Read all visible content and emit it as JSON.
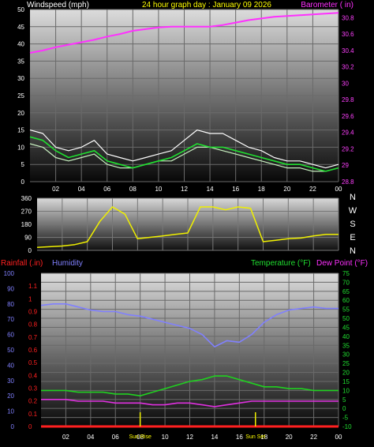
{
  "header": {
    "left": "Windspeed (mph)",
    "center": "24 hour graph day : January 09 2026",
    "right": "Barometer ( in)"
  },
  "colors": {
    "wind_gust": "#ffffff",
    "wind_avg": "#c8f0c0",
    "wind_trend": "#20e030",
    "barometer": "#ff30ff",
    "wind_dir": "#f0f000",
    "humidity": "#8080ff",
    "temperature": "#20d020",
    "dew_point": "#e030e0",
    "rainfall": "#ff2020",
    "sun_markers": "#f0f000"
  },
  "chart_data": [
    {
      "type": "line",
      "name": "wind-barometer",
      "xlabel_ticks": [
        "02",
        "04",
        "06",
        "08",
        "10",
        "12",
        "14",
        "16",
        "18",
        "20",
        "22",
        "00"
      ],
      "left_axis": {
        "label": "Windspeed (mph)",
        "ylim": [
          0,
          50
        ],
        "ticks": [
          "0",
          "5",
          "10",
          "15",
          "20",
          "25",
          "30",
          "35",
          "40",
          "45",
          "50"
        ]
      },
      "right_axis": {
        "label": "Barometer ( in)",
        "ylim": [
          28.8,
          30.9
        ],
        "ticks": [
          "28.8",
          "29",
          "29.2",
          "29.4",
          "29.6",
          "29.8",
          "30",
          "30.2",
          "30.4",
          "30.6",
          "30.8"
        ]
      },
      "x_hours": [
        0,
        1,
        2,
        3,
        4,
        5,
        6,
        7,
        8,
        9,
        10,
        11,
        12,
        13,
        14,
        15,
        16,
        17,
        18,
        19,
        20,
        21,
        22,
        23,
        24
      ],
      "barometer": [
        30.37,
        30.4,
        30.44,
        30.47,
        30.5,
        30.53,
        30.57,
        30.6,
        30.64,
        30.66,
        30.68,
        30.69,
        30.69,
        30.69,
        30.69,
        30.71,
        30.74,
        30.77,
        30.79,
        30.81,
        30.82,
        30.83,
        30.84,
        30.85,
        30.86
      ],
      "wind_gust": [
        15,
        14,
        10,
        9,
        10,
        12,
        8,
        7,
        6,
        7,
        8,
        9,
        12,
        15,
        14,
        14,
        12,
        10,
        9,
        7,
        6,
        6,
        5,
        4,
        5
      ],
      "wind_avg": [
        11,
        10,
        7,
        6,
        7,
        8,
        5,
        4,
        4,
        5,
        6,
        6,
        8,
        10,
        10,
        9,
        8,
        7,
        6,
        5,
        4,
        4,
        3,
        3,
        4
      ],
      "wind_trend": [
        13,
        12,
        9,
        7,
        8,
        9,
        6,
        5,
        4,
        5,
        6,
        7,
        9,
        11,
        10,
        10,
        9,
        8,
        7,
        6,
        5,
        5,
        4,
        3,
        4
      ],
      "grid": true
    },
    {
      "type": "line",
      "name": "wind-direction",
      "yticks": [
        "360",
        "270",
        "180",
        "90",
        "0"
      ],
      "ylim": [
        0,
        360
      ],
      "compass": [
        "N",
        "W",
        "S",
        "E",
        "N"
      ],
      "x_hours": [
        0,
        1,
        2,
        3,
        4,
        5,
        6,
        7,
        8,
        9,
        10,
        11,
        12,
        13,
        14,
        15,
        16,
        17,
        18,
        19,
        20,
        21,
        22,
        23,
        24
      ],
      "wind_dir": [
        20,
        25,
        30,
        40,
        60,
        200,
        300,
        250,
        80,
        90,
        100,
        110,
        120,
        300,
        300,
        280,
        300,
        290,
        60,
        70,
        80,
        85,
        100,
        110,
        110
      ],
      "grid": true
    },
    {
      "type": "line",
      "name": "temperature-humidity",
      "header": {
        "rainfall": "Rainfall (.in)",
        "humidity": "Humidity",
        "temperature": "Temperature (°F)",
        "dew_point": "Dew Point (°F)"
      },
      "axis_humidity": {
        "ylim": [
          0,
          100
        ],
        "ticks": [
          "0",
          "10",
          "20",
          "30",
          "40",
          "50",
          "60",
          "70",
          "80",
          "90",
          "100"
        ]
      },
      "axis_rainfall": {
        "ylim": [
          0,
          1.2
        ],
        "ticks": [
          "0",
          "0.1",
          "0.2",
          "0.3",
          "0.4",
          "0.5",
          "0.6",
          "0.7",
          "0.8",
          "0.9",
          "1",
          "1.1"
        ]
      },
      "axis_temperature": {
        "ylim": [
          -10,
          75
        ],
        "ticks": [
          "-10",
          "-5",
          "0",
          "5",
          "10",
          "15",
          "20",
          "25",
          "30",
          "35",
          "40",
          "45",
          "50",
          "55",
          "60",
          "65",
          "70",
          "75"
        ]
      },
      "xlabel_ticks": [
        "02",
        "04",
        "06",
        "08",
        "10",
        "12",
        "14",
        "16",
        "18",
        "20",
        "22",
        "00"
      ],
      "annotations": [
        "Sun Rise",
        "Sun Set"
      ],
      "sun_hours": [
        8.0,
        17.3
      ],
      "x_hours": [
        0,
        1,
        2,
        3,
        4,
        5,
        6,
        7,
        8,
        9,
        10,
        11,
        12,
        13,
        14,
        15,
        16,
        17,
        18,
        19,
        20,
        21,
        22,
        23,
        24
      ],
      "humidity": [
        79,
        80,
        80,
        78,
        76,
        75,
        75,
        73,
        72,
        70,
        68,
        66,
        64,
        60,
        52,
        56,
        55,
        60,
        68,
        73,
        76,
        77,
        78,
        77,
        77
      ],
      "temperature": [
        10,
        10,
        10,
        9,
        9,
        9,
        8,
        8,
        7,
        9,
        11,
        13,
        15,
        16,
        18,
        18,
        16,
        14,
        12,
        12,
        11,
        11,
        10,
        10,
        10
      ],
      "dew_point": [
        5,
        5,
        5,
        4,
        4,
        4,
        3,
        3,
        3,
        2,
        2,
        3,
        3,
        2,
        1,
        2,
        3,
        4,
        4,
        4,
        4,
        4,
        4,
        4,
        4
      ],
      "rainfall": [
        0,
        0,
        0,
        0,
        0,
        0,
        0,
        0,
        0,
        0,
        0,
        0,
        0,
        0,
        0,
        0,
        0,
        0,
        0,
        0,
        0,
        0,
        0,
        0,
        0
      ],
      "grid": true
    }
  ]
}
